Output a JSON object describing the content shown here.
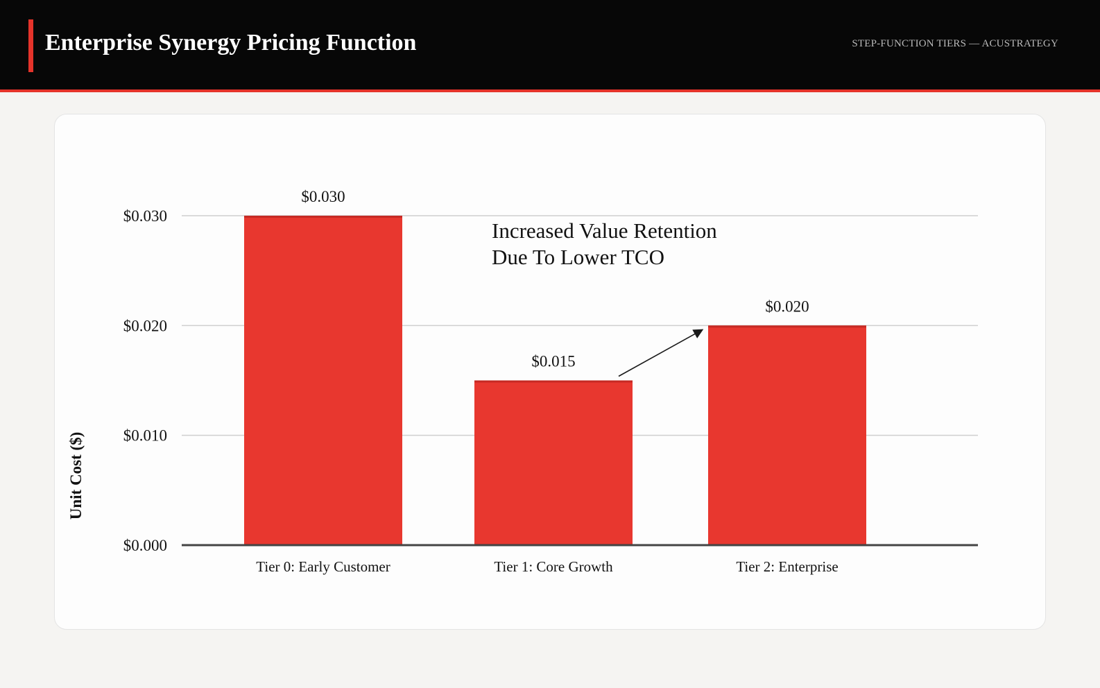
{
  "header": {
    "title": "Enterprise Synergy Pricing Function",
    "subtitle": "STEP-FUNCTION TIERS — ACUSTRATEGY"
  },
  "colors": {
    "accent": "#e5332a",
    "bar": "#e8372f",
    "bar_top": "#c62a24",
    "header_bg": "#070707"
  },
  "chart_data": {
    "type": "bar",
    "categories": [
      "Tier 0: Early Customer",
      "Tier 1: Core Growth",
      "Tier 2: Enterprise"
    ],
    "values": [
      0.03,
      0.015,
      0.02
    ],
    "value_labels": [
      "$0.030",
      "$0.015",
      "$0.020"
    ],
    "ylabel": "Unit Cost ($)",
    "ylim": [
      0,
      0.03
    ],
    "yticks": [
      0.0,
      0.01,
      0.02,
      0.03
    ],
    "ytick_labels": [
      "$0.000",
      "$0.010",
      "$0.020",
      "$0.030"
    ],
    "grid": true,
    "annotation": {
      "lines": [
        "Increased Value Retention",
        "Due To Lower TCO"
      ],
      "arrow_from_category": 1,
      "arrow_to_category": 2
    }
  }
}
